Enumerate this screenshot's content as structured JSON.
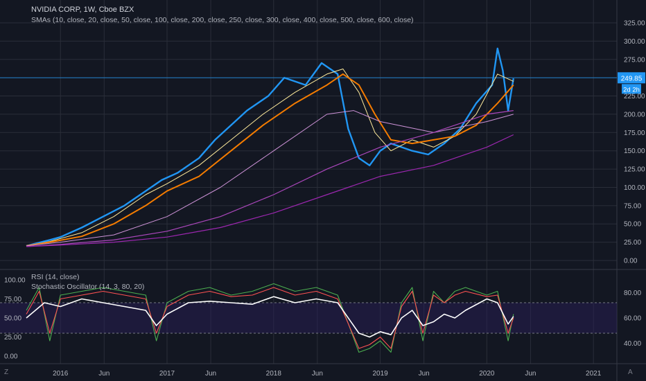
{
  "header": {
    "title": "NVIDIA CORP, 1W, Cboe BZX",
    "sma_label": "SMAs (10, close, 20, close, 50, close, 100, close, 200, close, 250, close, 300, close, 400, close, 500, close, 600, close)"
  },
  "indicators": {
    "rsi_label": "RSI (14, close)",
    "stoch_label": "Stochastic Oscillator (14, 3, 80, 20)"
  },
  "corner_left": "Z",
  "corner_right": "A",
  "chart_data": [
    {
      "type": "line",
      "ylim": [
        0,
        325
      ],
      "y_ticks": [
        "325.00",
        "300.00",
        "275.00",
        "250.00",
        "225.00",
        "200.00",
        "175.00",
        "150.00",
        "125.00",
        "100.00",
        "75.00",
        "50.00",
        "25.00",
        "0.00"
      ],
      "x_ticks": [
        "2016",
        "Jun",
        "2017",
        "Jun",
        "2018",
        "Jun",
        "2019",
        "Jun",
        "2020",
        "Jun",
        "2021"
      ],
      "price_tag": "249.85",
      "time_tag": "2d 2h",
      "series": [
        {
          "color": "#2196f3",
          "x": [
            2015.68,
            2015.9,
            2016.0,
            2016.2,
            2016.4,
            2016.6,
            2016.8,
            2016.95,
            2017.1,
            2017.3,
            2017.45,
            2017.6,
            2017.75,
            2017.95,
            2018.1,
            2018.3,
            2018.45,
            2018.6,
            2018.7,
            2018.8,
            2018.9,
            2019.0,
            2019.1,
            2019.3,
            2019.45,
            2019.6,
            2019.75,
            2019.9,
            2020.05,
            2020.1,
            2020.15,
            2020.2,
            2020.25
          ],
          "values": [
            20,
            28,
            32,
            45,
            60,
            75,
            95,
            110,
            120,
            140,
            165,
            185,
            205,
            225,
            250,
            240,
            270,
            255,
            180,
            140,
            130,
            150,
            160,
            150,
            145,
            160,
            180,
            215,
            240,
            290,
            260,
            205,
            249
          ]
        },
        {
          "color": "#ffeb9c",
          "x": [
            2015.68,
            2015.9,
            2016.2,
            2016.5,
            2016.8,
            2017.0,
            2017.3,
            2017.6,
            2017.9,
            2018.2,
            2018.5,
            2018.65,
            2018.8,
            2018.95,
            2019.1,
            2019.3,
            2019.5,
            2019.7,
            2019.9,
            2020.1,
            2020.25
          ],
          "values": [
            20,
            26,
            38,
            60,
            90,
            105,
            130,
            165,
            200,
            230,
            255,
            262,
            230,
            175,
            150,
            165,
            155,
            170,
            200,
            255,
            245
          ]
        },
        {
          "color": "#f57c00",
          "x": [
            2015.68,
            2015.9,
            2016.2,
            2016.5,
            2016.8,
            2017.0,
            2017.3,
            2017.6,
            2017.9,
            2018.2,
            2018.5,
            2018.65,
            2018.8,
            2018.95,
            2019.1,
            2019.3,
            2019.5,
            2019.7,
            2019.9,
            2020.1,
            2020.25
          ],
          "values": [
            20,
            25,
            33,
            50,
            75,
            95,
            115,
            150,
            185,
            215,
            240,
            255,
            240,
            200,
            165,
            160,
            165,
            170,
            185,
            215,
            240
          ]
        },
        {
          "color": "#ce93d8",
          "x": [
            2015.68,
            2016.0,
            2016.5,
            2017.0,
            2017.5,
            2018.0,
            2018.5,
            2018.75,
            2019.0,
            2019.5,
            2020.0,
            2020.25
          ],
          "values": [
            20,
            25,
            35,
            60,
            100,
            150,
            200,
            205,
            190,
            175,
            190,
            200
          ]
        },
        {
          "color": "#ab47bc",
          "x": [
            2015.68,
            2016.0,
            2016.5,
            2017.0,
            2017.5,
            2018.0,
            2018.5,
            2019.0,
            2019.5,
            2020.0,
            2020.25
          ],
          "values": [
            19,
            22,
            28,
            40,
            60,
            90,
            125,
            155,
            175,
            200,
            205
          ]
        },
        {
          "color": "#9c27b0",
          "x": [
            2015.68,
            2016.0,
            2016.5,
            2017.0,
            2017.5,
            2018.0,
            2018.5,
            2019.0,
            2019.5,
            2020.0,
            2020.25
          ],
          "values": [
            19,
            21,
            25,
            32,
            45,
            65,
            90,
            115,
            130,
            155,
            172
          ]
        }
      ]
    },
    {
      "type": "line",
      "ylim": [
        0,
        100
      ],
      "y_ticks_left": [
        "100.00",
        "75.00",
        "50.00",
        "25.00",
        "0.00"
      ],
      "y_ticks_right": [
        "80.00",
        "60.00",
        "40.00"
      ],
      "series": [
        {
          "color": "#4caf50",
          "x": [
            2015.68,
            2015.8,
            2015.9,
            2016.0,
            2016.2,
            2016.4,
            2016.6,
            2016.8,
            2016.9,
            2017.0,
            2017.2,
            2017.4,
            2017.6,
            2017.8,
            2018.0,
            2018.2,
            2018.4,
            2018.6,
            2018.8,
            2018.9,
            2019.0,
            2019.1,
            2019.2,
            2019.3,
            2019.4,
            2019.5,
            2019.6,
            2019.7,
            2019.8,
            2020.0,
            2020.1,
            2020.2,
            2020.25
          ],
          "values": [
            60,
            90,
            20,
            80,
            85,
            90,
            85,
            80,
            20,
            70,
            85,
            90,
            80,
            85,
            95,
            85,
            90,
            80,
            5,
            10,
            20,
            5,
            70,
            90,
            20,
            85,
            70,
            85,
            90,
            80,
            85,
            20,
            55
          ]
        },
        {
          "color": "#ff5252",
          "x": [
            2015.68,
            2015.8,
            2015.9,
            2016.0,
            2016.2,
            2016.4,
            2016.6,
            2016.8,
            2016.9,
            2017.0,
            2017.2,
            2017.4,
            2017.6,
            2017.8,
            2018.0,
            2018.2,
            2018.4,
            2018.6,
            2018.8,
            2018.9,
            2019.0,
            2019.1,
            2019.2,
            2019.3,
            2019.4,
            2019.5,
            2019.6,
            2019.7,
            2019.8,
            2020.0,
            2020.1,
            2020.2,
            2020.25
          ],
          "values": [
            55,
            85,
            30,
            75,
            80,
            85,
            80,
            75,
            30,
            65,
            80,
            85,
            78,
            80,
            90,
            80,
            85,
            75,
            10,
            15,
            25,
            10,
            65,
            85,
            30,
            80,
            70,
            80,
            85,
            78,
            80,
            30,
            50
          ]
        },
        {
          "color": "#ffffff",
          "x": [
            2015.68,
            2015.85,
            2016.0,
            2016.2,
            2016.4,
            2016.6,
            2016.8,
            2016.9,
            2017.0,
            2017.2,
            2017.4,
            2017.6,
            2017.8,
            2018.0,
            2018.2,
            2018.4,
            2018.6,
            2018.8,
            2018.9,
            2019.0,
            2019.1,
            2019.2,
            2019.3,
            2019.4,
            2019.5,
            2019.6,
            2019.7,
            2019.8,
            2020.0,
            2020.1,
            2020.2,
            2020.25
          ],
          "values": [
            50,
            70,
            65,
            75,
            70,
            65,
            60,
            40,
            55,
            70,
            72,
            70,
            68,
            78,
            70,
            75,
            70,
            30,
            25,
            32,
            28,
            50,
            60,
            40,
            45,
            55,
            50,
            60,
            75,
            70,
            42,
            52
          ]
        }
      ]
    }
  ]
}
